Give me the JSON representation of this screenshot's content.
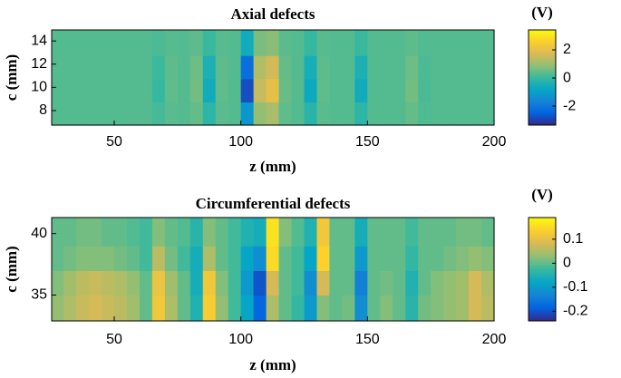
{
  "chart_data": [
    {
      "type": "heatmap",
      "title": "Axial defects",
      "xlabel": "z (mm)",
      "ylabel": "c (mm)",
      "colormap": "parula",
      "x": [
        27.5,
        32.5,
        37.5,
        42.5,
        47.5,
        52.5,
        57.5,
        62.5,
        67.5,
        72.5,
        77.5,
        82.5,
        87.5,
        92.5,
        97.5,
        102.5,
        107.5,
        112.5,
        117.5,
        122.5,
        127.5,
        132.5,
        137.5,
        142.5,
        147.5,
        152.5,
        157.5,
        162.5,
        167.5,
        172.5,
        177.5,
        182.5,
        187.5,
        192.5,
        197.5
      ],
      "y": [
        7.75,
        9.75,
        11.75,
        13.75
      ],
      "values": [
        [
          0.3,
          0.3,
          0.3,
          0.3,
          0.3,
          0.3,
          0.3,
          0.3,
          0.15,
          0.35,
          0.3,
          0.45,
          -0.15,
          0.35,
          0.3,
          -1.25,
          0.9,
          1.15,
          0.4,
          0.3,
          -0.2,
          0.35,
          0.3,
          0.3,
          -0.15,
          0.3,
          0.3,
          0.3,
          0.45,
          0.25,
          0.3,
          0.3,
          0.3,
          0.3,
          0.3
        ],
        [
          0.3,
          0.3,
          0.3,
          0.3,
          0.3,
          0.3,
          0.3,
          0.3,
          0.0,
          0.4,
          0.3,
          0.6,
          -0.6,
          0.4,
          0.3,
          -2.8,
          1.5,
          2.0,
          0.5,
          0.3,
          -0.7,
          0.4,
          0.3,
          0.3,
          -0.6,
          0.3,
          0.3,
          0.3,
          0.6,
          0.2,
          0.3,
          0.3,
          0.3,
          0.3,
          0.3
        ],
        [
          0.3,
          0.3,
          0.3,
          0.3,
          0.3,
          0.3,
          0.3,
          0.3,
          0.06,
          0.38,
          0.3,
          0.54,
          -0.42,
          0.38,
          0.3,
          -2.2,
          1.26,
          1.66,
          0.46,
          0.3,
          -0.5,
          0.38,
          0.3,
          0.3,
          -0.42,
          0.3,
          0.3,
          0.3,
          0.54,
          0.22,
          0.3,
          0.3,
          0.3,
          0.3,
          0.3
        ],
        [
          0.3,
          0.3,
          0.3,
          0.3,
          0.3,
          0.3,
          0.3,
          0.3,
          0.21,
          0.33,
          0.3,
          0.39,
          0.03,
          0.33,
          0.3,
          -0.63,
          0.66,
          0.81,
          0.36,
          0.3,
          0.0,
          0.33,
          0.3,
          0.3,
          0.03,
          0.3,
          0.3,
          0.3,
          0.39,
          0.27,
          0.3,
          0.3,
          0.3,
          0.3,
          0.3
        ]
      ],
      "xlim": [
        25.3,
        200
      ],
      "ylim": [
        6.75,
        14.95
      ],
      "xticks": [
        50,
        100,
        150,
        200
      ],
      "yticks": [
        8,
        10,
        12,
        14
      ],
      "colorbar": {
        "label": "(V)",
        "clim": [
          -3.35,
          3.42
        ],
        "ticks": [
          -2,
          0,
          2
        ]
      }
    },
    {
      "type": "heatmap",
      "title": "Circumferential defects",
      "xlabel": "z (mm)",
      "ylabel": "c (mm)",
      "colormap": "parula",
      "x": [
        27.5,
        32.5,
        37.5,
        42.5,
        47.5,
        52.5,
        57.5,
        62.5,
        67.5,
        72.5,
        77.5,
        82.5,
        87.5,
        92.5,
        97.5,
        102.5,
        107.5,
        112.5,
        117.5,
        122.5,
        127.5,
        132.5,
        137.5,
        142.5,
        147.5,
        152.5,
        157.5,
        162.5,
        167.5,
        172.5,
        177.5,
        182.5,
        187.5,
        192.5,
        197.5
      ],
      "y": [
        34,
        36,
        38,
        40
      ],
      "values": [
        [
          0.03,
          0.05,
          0.07,
          0.08,
          0.07,
          0.06,
          0.04,
          0.0,
          0.12,
          0.05,
          0.0,
          -0.05,
          0.13,
          0.03,
          -0.02,
          -0.08,
          -0.18,
          0.05,
          0.0,
          -0.03,
          -0.1,
          0.02,
          0.0,
          0.01,
          -0.12,
          0.0,
          0.02,
          0.0,
          -0.04,
          0.01,
          0.02,
          0.03,
          0.04,
          0.08,
          0.06
        ],
        [
          0.02,
          0.04,
          0.06,
          0.07,
          0.06,
          0.05,
          0.03,
          0.0,
          0.11,
          0.04,
          0.0,
          -0.06,
          0.12,
          0.02,
          -0.02,
          -0.1,
          -0.2,
          0.08,
          0.0,
          -0.02,
          -0.12,
          0.08,
          0.0,
          0.0,
          -0.14,
          0.0,
          0.01,
          0.0,
          -0.05,
          0.0,
          0.02,
          0.03,
          0.04,
          0.08,
          0.05
        ],
        [
          0.0,
          0.01,
          0.02,
          0.02,
          0.02,
          0.01,
          0.0,
          -0.02,
          0.06,
          0.01,
          -0.02,
          -0.06,
          0.05,
          0.0,
          -0.02,
          -0.08,
          -0.12,
          0.15,
          0.0,
          -0.02,
          -0.08,
          0.14,
          0.0,
          0.0,
          -0.1,
          0.0,
          0.0,
          0.0,
          -0.03,
          0.0,
          0.0,
          0.01,
          0.02,
          0.03,
          0.02
        ],
        [
          0.0,
          0.0,
          0.01,
          0.01,
          0.0,
          0.0,
          -0.01,
          -0.02,
          0.02,
          0.0,
          -0.01,
          -0.04,
          0.02,
          0.0,
          -0.02,
          -0.05,
          -0.06,
          0.16,
          0.02,
          -0.01,
          -0.05,
          0.12,
          0.0,
          0.0,
          -0.06,
          0.0,
          0.0,
          0.0,
          -0.02,
          0.0,
          0.0,
          0.0,
          0.01,
          0.01,
          0.0
        ]
      ],
      "xlim": [
        25.3,
        200
      ],
      "ylim": [
        32.9,
        41.3
      ],
      "xticks": [
        50,
        100,
        150,
        200
      ],
      "yticks": [
        35,
        40
      ],
      "colorbar": {
        "label": "(V)",
        "clim": [
          -0.24,
          0.19
        ],
        "ticks": [
          -0.2,
          -0.1,
          0,
          0.1
        ]
      }
    }
  ]
}
